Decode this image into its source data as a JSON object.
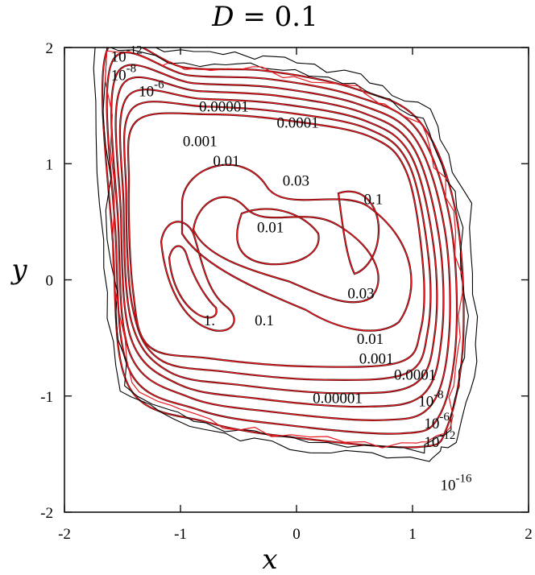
{
  "chart_data": {
    "type": "contour",
    "title": "D = 0.1",
    "title_variable": "D",
    "title_value": "0.1",
    "xlabel": "x",
    "ylabel": "y",
    "xlim": [
      -2,
      2
    ],
    "ylim": [
      -2,
      2
    ],
    "xticks": [
      -2,
      -1,
      0,
      1,
      2
    ],
    "yticks": [
      -2,
      -1,
      0,
      1,
      2
    ],
    "xtick_labels": [
      "-2",
      "-1",
      "0",
      "1",
      "2"
    ],
    "ytick_labels": [
      "-2",
      "-1",
      "0",
      "1",
      "2"
    ],
    "grid": false,
    "legend": "none",
    "colors": {
      "black_contours": "#000000",
      "red_contours": "#e8191f"
    },
    "contour_labels": [
      {
        "base": "10",
        "exp": "-12",
        "x": -1.6,
        "y": 1.88
      },
      {
        "base": "10",
        "exp": "-8",
        "x": -1.6,
        "y": 1.72
      },
      {
        "base": "10",
        "exp": "-6",
        "x": -1.36,
        "y": 1.58
      },
      {
        "text": "0.00001",
        "x": -0.84,
        "y": 1.45
      },
      {
        "text": "0.0001",
        "x": -0.17,
        "y": 1.31
      },
      {
        "text": "0.001",
        "x": -0.98,
        "y": 1.15
      },
      {
        "text": "0.01",
        "x": -0.72,
        "y": 0.98
      },
      {
        "text": "0.03",
        "x": -0.12,
        "y": 0.81
      },
      {
        "text": "0.1",
        "x": 0.58,
        "y": 0.65
      },
      {
        "text": "0.01",
        "x": -0.34,
        "y": 0.41
      },
      {
        "text": "0.03",
        "x": 0.44,
        "y": -0.16
      },
      {
        "text": "1.",
        "x": -0.8,
        "y": -0.39
      },
      {
        "text": "0.1",
        "x": -0.36,
        "y": -0.39
      },
      {
        "text": "0.01",
        "x": 0.52,
        "y": -0.55
      },
      {
        "text": "0.001",
        "x": 0.54,
        "y": -0.72
      },
      {
        "text": "0.0001",
        "x": 0.84,
        "y": -0.86
      },
      {
        "text": "0.00001",
        "x": 0.14,
        "y": -1.06
      },
      {
        "base": "10",
        "exp": "-8",
        "x": 1.05,
        "y": -1.09
      },
      {
        "base": "10",
        "exp": "-6",
        "x": 1.1,
        "y": -1.28
      },
      {
        "base": "10",
        "exp": "-12",
        "x": 1.1,
        "y": -1.44
      },
      {
        "base": "10",
        "exp": "-16",
        "x": 1.24,
        "y": -1.81
      }
    ]
  }
}
